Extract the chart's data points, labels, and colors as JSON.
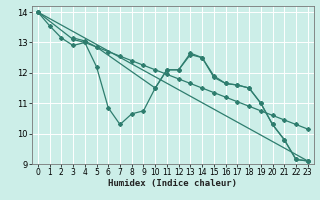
{
  "bg_color": "#cceee8",
  "line_color": "#2e7d6e",
  "grid_color": "#ffffff",
  "xlabel": "Humidex (Indice chaleur)",
  "xlim": [
    -0.5,
    23.5
  ],
  "ylim": [
    9,
    14.2
  ],
  "xticks": [
    0,
    1,
    2,
    3,
    4,
    5,
    6,
    7,
    8,
    9,
    10,
    11,
    12,
    13,
    14,
    15,
    16,
    17,
    18,
    19,
    20,
    21,
    22,
    23
  ],
  "yticks": [
    9,
    10,
    11,
    12,
    13,
    14
  ],
  "lines": [
    {
      "x": [
        0,
        23
      ],
      "y": [
        14.0,
        9.1
      ]
    },
    {
      "x": [
        0,
        3,
        4,
        5,
        6,
        7,
        8,
        9,
        10,
        11,
        12,
        13,
        14,
        15,
        16,
        17,
        18,
        19,
        20,
        21,
        22,
        23
      ],
      "y": [
        14.0,
        13.1,
        13.0,
        12.85,
        12.7,
        12.55,
        12.4,
        12.25,
        12.1,
        11.95,
        11.8,
        11.65,
        11.5,
        11.35,
        11.2,
        11.05,
        10.9,
        10.75,
        10.6,
        10.45,
        10.3,
        10.15
      ]
    },
    {
      "x": [
        0,
        1,
        2,
        3,
        4,
        5,
        6,
        7,
        8,
        9,
        10,
        11,
        12,
        13,
        14,
        15,
        16,
        17,
        18,
        19,
        20,
        21,
        22,
        23
      ],
      "y": [
        14.0,
        13.55,
        13.15,
        12.9,
        13.0,
        12.2,
        10.85,
        10.3,
        10.65,
        10.75,
        11.5,
        12.1,
        12.1,
        12.65,
        12.5,
        11.85,
        11.65,
        11.6,
        11.5,
        11.0,
        10.3,
        9.8,
        9.15,
        9.1
      ]
    },
    {
      "x": [
        3,
        4,
        5,
        10,
        11,
        12,
        13,
        14,
        15,
        16,
        17,
        18,
        19,
        20,
        21,
        22,
        23
      ],
      "y": [
        13.15,
        13.05,
        12.85,
        11.5,
        12.1,
        12.1,
        12.6,
        12.5,
        11.9,
        11.65,
        11.6,
        11.5,
        11.0,
        10.3,
        9.8,
        9.15,
        9.1
      ]
    }
  ]
}
